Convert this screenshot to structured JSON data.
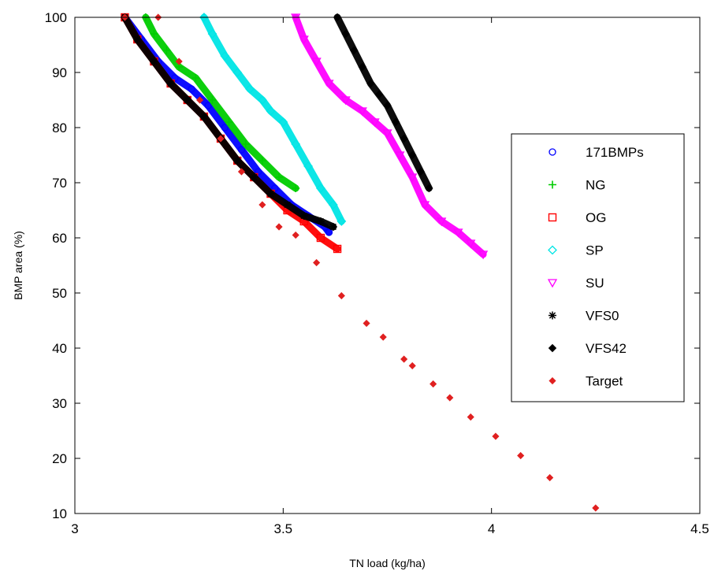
{
  "chart_data": {
    "type": "scatter",
    "xlabel": "TN load (kg/ha)",
    "ylabel": "BMP area (%)",
    "xlim": [
      3,
      4.5
    ],
    "ylim": [
      10,
      100
    ],
    "xticks": [
      "3",
      "3.5",
      "4",
      "4.5"
    ],
    "yticks": [
      "10",
      "20",
      "30",
      "40",
      "50",
      "60",
      "70",
      "80",
      "90",
      "100"
    ],
    "grid": false,
    "legend_position": "right",
    "series": [
      {
        "name": "171BMPs",
        "color": "#0000ff",
        "marker": "circle",
        "x": [
          3.12,
          3.16,
          3.2,
          3.24,
          3.28,
          3.32,
          3.36,
          3.4,
          3.44,
          3.48,
          3.52,
          3.56,
          3.6,
          3.61
        ],
        "y": [
          100,
          96,
          92,
          89,
          87,
          84,
          80,
          76,
          72,
          69,
          66,
          64,
          62,
          61
        ]
      },
      {
        "name": "NG",
        "color": "#00cc00",
        "marker": "plus",
        "x": [
          3.17,
          3.19,
          3.22,
          3.25,
          3.29,
          3.33,
          3.37,
          3.41,
          3.45,
          3.49,
          3.53
        ],
        "y": [
          100,
          97,
          94,
          91,
          89,
          85,
          81,
          77,
          74,
          71,
          69
        ]
      },
      {
        "name": "OG",
        "color": "#ff0000",
        "marker": "square",
        "x": [
          3.12,
          3.15,
          3.19,
          3.23,
          3.27,
          3.31,
          3.35,
          3.39,
          3.43,
          3.47,
          3.51,
          3.55,
          3.59,
          3.63
        ],
        "y": [
          100,
          96,
          92,
          88,
          85,
          82,
          78,
          74,
          71,
          68,
          65,
          63,
          60,
          58
        ]
      },
      {
        "name": "SP",
        "color": "#00e5e5",
        "marker": "diamond",
        "x": [
          3.31,
          3.33,
          3.36,
          3.39,
          3.42,
          3.45,
          3.47,
          3.5,
          3.53,
          3.56,
          3.59,
          3.62,
          3.64
        ],
        "y": [
          100,
          97,
          93,
          90,
          87,
          85,
          83,
          81,
          77,
          73,
          69,
          66,
          63
        ]
      },
      {
        "name": "SU",
        "color": "#ff00ff",
        "marker": "triangle-down",
        "x": [
          3.53,
          3.55,
          3.58,
          3.61,
          3.65,
          3.69,
          3.72,
          3.75,
          3.78,
          3.81,
          3.84,
          3.88,
          3.92,
          3.95,
          3.98
        ],
        "y": [
          100,
          96,
          92,
          88,
          85,
          83,
          81,
          79,
          75,
          71,
          66,
          63,
          61,
          59,
          57
        ]
      },
      {
        "name": "VFS0",
        "color": "#000000",
        "marker": "asterisk",
        "x": [
          3.12,
          3.15,
          3.19,
          3.23,
          3.27,
          3.31,
          3.35,
          3.39,
          3.43,
          3.47,
          3.51,
          3.55,
          3.59,
          3.62
        ],
        "y": [
          100,
          96,
          92,
          88,
          85,
          82,
          78,
          74,
          71,
          68,
          66,
          64,
          63,
          62
        ]
      },
      {
        "name": "VFS42",
        "color": "#000000",
        "marker": "diamond-filled",
        "x": [
          3.63,
          3.65,
          3.67,
          3.69,
          3.71,
          3.73,
          3.75,
          3.77,
          3.79,
          3.81,
          3.83,
          3.85
        ],
        "y": [
          100,
          97,
          94,
          91,
          88,
          86,
          84,
          81,
          78,
          75,
          72,
          69
        ]
      },
      {
        "name": "Target",
        "color": "#e02020",
        "marker": "diamond-small",
        "x": [
          3.12,
          3.2,
          3.25,
          3.3,
          3.35,
          3.4,
          3.45,
          3.49,
          3.53,
          3.58,
          3.64,
          3.7,
          3.74,
          3.79,
          3.81,
          3.86,
          3.9,
          3.95,
          4.01,
          4.07,
          4.14,
          4.25
        ],
        "y": [
          100,
          100,
          92,
          85,
          78,
          72,
          66,
          62,
          60.5,
          55.5,
          49.5,
          44.5,
          42,
          38,
          36.8,
          33.5,
          31,
          27.5,
          24,
          20.5,
          16.5,
          11
        ]
      }
    ]
  }
}
